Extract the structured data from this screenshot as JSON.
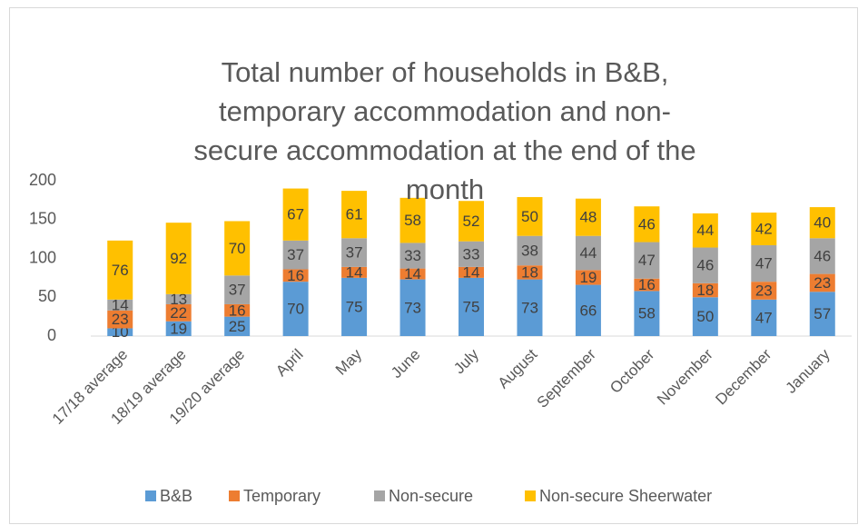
{
  "chart_data": {
    "type": "stacked-bar",
    "title": "Total number of households in B&B, temporary accommodation and non-secure accommodation at the end of the month",
    "categories": [
      "17/18 average",
      "18/19 average",
      "19/20 average",
      "April",
      "May",
      "June",
      "July",
      "August",
      "September",
      "October",
      "November",
      "December",
      "January"
    ],
    "series": [
      {
        "name": "B&B",
        "color": "#5b9bd5",
        "values": [
          10,
          19,
          25,
          70,
          75,
          73,
          75,
          73,
          66,
          58,
          50,
          47,
          57
        ]
      },
      {
        "name": "Temporary",
        "color": "#ed7d31",
        "values": [
          23,
          22,
          16,
          16,
          14,
          14,
          14,
          18,
          19,
          16,
          18,
          23,
          23
        ]
      },
      {
        "name": "Non-secure",
        "color": "#a5a5a5",
        "values": [
          14,
          13,
          37,
          37,
          37,
          33,
          33,
          38,
          44,
          47,
          46,
          47,
          46
        ]
      },
      {
        "name": "Non-secure Sheerwater",
        "color": "#ffc000",
        "values": [
          76,
          92,
          70,
          67,
          61,
          58,
          52,
          50,
          48,
          46,
          44,
          42,
          40
        ]
      }
    ],
    "ylim": [
      0,
      200
    ],
    "yticks": [
      0,
      50,
      100,
      150,
      200
    ],
    "grid": false,
    "legend": "bottom"
  }
}
